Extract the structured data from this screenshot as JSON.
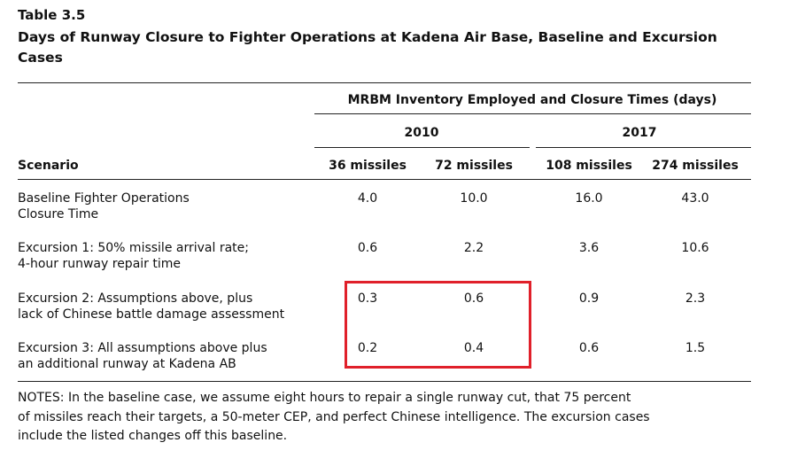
{
  "header": {
    "label": "Table 3.5",
    "title": [
      "Days of Runway Closure to Fighter Operations at Kadena Air Base, Baseline and Excursion",
      "Cases"
    ]
  },
  "table": {
    "group_header": "MRBM Inventory Employed and Closure Times (days)",
    "years": [
      "2010",
      "2017"
    ],
    "columns": [
      "Scenario",
      "36 missiles",
      "72 missiles",
      "108 missiles",
      "274 missiles"
    ],
    "rows": [
      {
        "label": [
          "Baseline Fighter Operations",
          "Closure Time"
        ],
        "values": [
          "4.0",
          "10.0",
          "16.0",
          "43.0"
        ]
      },
      {
        "label": [
          "Excursion 1: 50% missile arrival rate;",
          "4-hour runway repair time"
        ],
        "values": [
          "0.6",
          "2.2",
          "3.6",
          "10.6"
        ]
      },
      {
        "label": [
          "Excursion 2: Assumptions above, plus",
          "lack of Chinese battle damage assessment"
        ],
        "values": [
          "0.3",
          "0.6",
          "0.9",
          "2.3"
        ]
      },
      {
        "label": [
          "Excursion 3: All assumptions above plus",
          "an additional runway at Kadena AB"
        ],
        "values": [
          "0.2",
          "0.4",
          "0.6",
          "1.5"
        ]
      }
    ]
  },
  "notes": [
    "NOTES: In the baseline case, we assume eight hours to repair a single runway cut, that 75 percent",
    "of missiles reach their targets, a 50-meter CEP, and perfect Chinese intelligence. The excursion cases",
    "include the listed changes off this baseline."
  ]
}
